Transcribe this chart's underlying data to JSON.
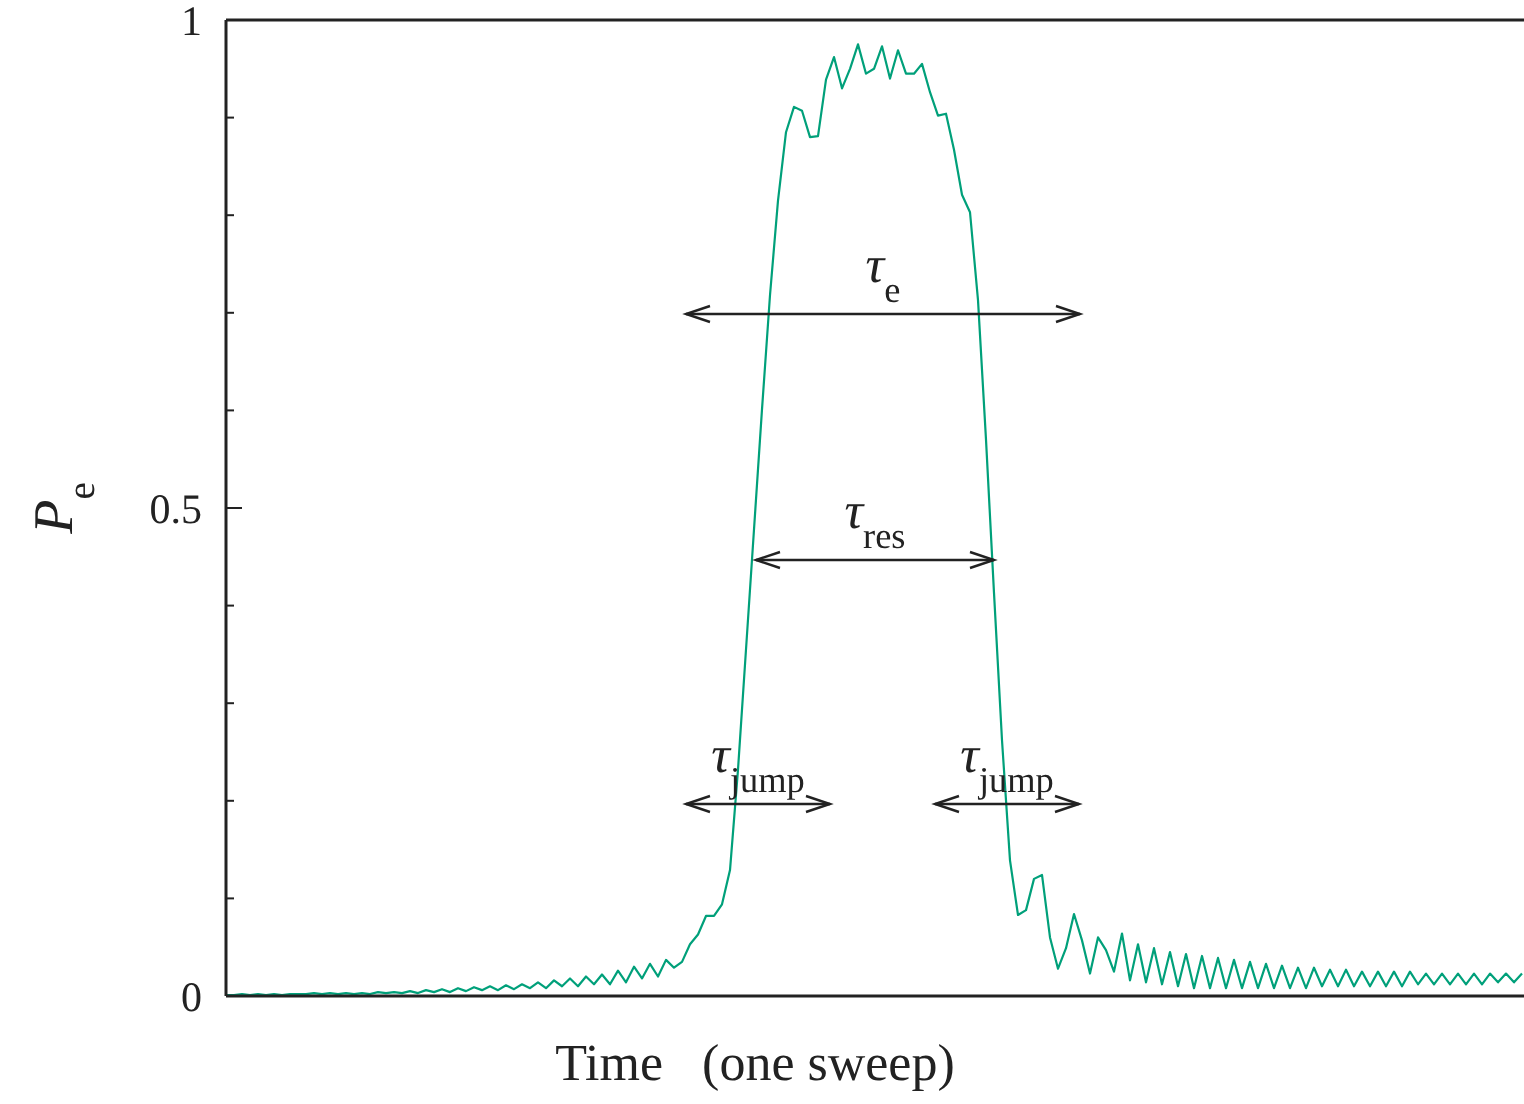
{
  "chart_data": {
    "type": "line",
    "xlabel": "Time   (one sweep)",
    "ylabel": "P$_{e}$",
    "categories": [
      null,
      null,
      null,
      null,
      null,
      null,
      null,
      null,
      null,
      null,
      null,
      null,
      null,
      null,
      null,
      null,
      null,
      null,
      null,
      null,
      null,
      null,
      null,
      null,
      null,
      null,
      null,
      null,
      null,
      null,
      null,
      null,
      null,
      null,
      null,
      null,
      null,
      null,
      null,
      null,
      null,
      null,
      null,
      null,
      null,
      null,
      null,
      null,
      null,
      null,
      null,
      null,
      null,
      null,
      null,
      null,
      null,
      null,
      null,
      null,
      null,
      null,
      null,
      null,
      null,
      null,
      null,
      null,
      null,
      null,
      null,
      null,
      null,
      null,
      null,
      null,
      null,
      null,
      null,
      null,
      null,
      null,
      null,
      null,
      null,
      null,
      null,
      null,
      null,
      null,
      null,
      null,
      null,
      null,
      null,
      null,
      null,
      null,
      null,
      null,
      null,
      null,
      null,
      null,
      null,
      null,
      null,
      null,
      null,
      null,
      null,
      null,
      null,
      null,
      null,
      null,
      null,
      null,
      null,
      null,
      null,
      null,
      null,
      null,
      null,
      null,
      null,
      null,
      null,
      null,
      null,
      null,
      null,
      null,
      null,
      null,
      null,
      null,
      null,
      null,
      null,
      null,
      null,
      null,
      null,
      null,
      null,
      null,
      null,
      null,
      null,
      null,
      null,
      null,
      null,
      null,
      null,
      null,
      null,
      null,
      null,
      null,
      null
    ],
    "series": [
      {
        "color": "#00a07a",
        "values": [
          0.001,
          0.001,
          0.002,
          0.001,
          0.002,
          0.001,
          0.002,
          0.001,
          0.002,
          0.002,
          0.002,
          0.003,
          0.002,
          0.003,
          0.002,
          0.003,
          0.002,
          0.003,
          0.002,
          0.004,
          0.003,
          0.004,
          0.003,
          0.005,
          0.003,
          0.006,
          0.004,
          0.007,
          0.004,
          0.008,
          0.005,
          0.009,
          0.006,
          0.01,
          0.006,
          0.011,
          0.007,
          0.012,
          0.008,
          0.014,
          0.008,
          0.016,
          0.01,
          0.018,
          0.01,
          0.02,
          0.012,
          0.022,
          0.012,
          0.026,
          0.014,
          0.03,
          0.018,
          0.033,
          0.02,
          0.037,
          0.029,
          0.035,
          0.053,
          0.063,
          0.082,
          0.082,
          0.094,
          0.129,
          0.232,
          0.355,
          0.478,
          0.601,
          0.718,
          0.815,
          0.885,
          0.911,
          0.907,
          0.88,
          0.881,
          0.939,
          0.962,
          0.93,
          0.95,
          0.975,
          0.945,
          0.95,
          0.973,
          0.94,
          0.969,
          0.945,
          0.945,
          0.955,
          0.926,
          0.902,
          0.904,
          0.867,
          0.821,
          0.803,
          0.713,
          0.57,
          0.413,
          0.262,
          0.139,
          0.083,
          0.088,
          0.12,
          0.124,
          0.06,
          0.028,
          0.049,
          0.084,
          0.057,
          0.023,
          0.06,
          0.047,
          0.025,
          0.064,
          0.016,
          0.053,
          0.014,
          0.049,
          0.012,
          0.045,
          0.01,
          0.043,
          0.008,
          0.041,
          0.008,
          0.039,
          0.008,
          0.037,
          0.008,
          0.035,
          0.008,
          0.033,
          0.008,
          0.031,
          0.008,
          0.029,
          0.008,
          0.029,
          0.01,
          0.027,
          0.01,
          0.027,
          0.01,
          0.025,
          0.01,
          0.025,
          0.01,
          0.025,
          0.01,
          0.025,
          0.012,
          0.023,
          0.012,
          0.023,
          0.012,
          0.023,
          0.012,
          0.023,
          0.012,
          0.023,
          0.014,
          0.023,
          0.014,
          0.023
        ]
      }
    ],
    "ylim": [
      0,
      1
    ],
    "yticks": [
      0,
      {
        "value": 0.1,
        "label": null
      },
      {
        "value": 0.2,
        "label": null
      },
      {
        "value": 0.3,
        "label": null
      },
      {
        "value": 0.4,
        "label": null
      },
      0.5,
      {
        "value": 0.6,
        "label": null
      },
      {
        "value": 0.7,
        "label": null
      },
      {
        "value": 0.8,
        "label": null
      },
      {
        "value": 0.9,
        "label": null
      },
      1
    ],
    "tick_labels": "y",
    "marker": "none",
    "line_style": "solid",
    "annotations": [
      "τ$_{e}$",
      "τ$_{res}$",
      "τ$_{jump}$",
      "τ$_{jump}$"
    ]
  }
}
